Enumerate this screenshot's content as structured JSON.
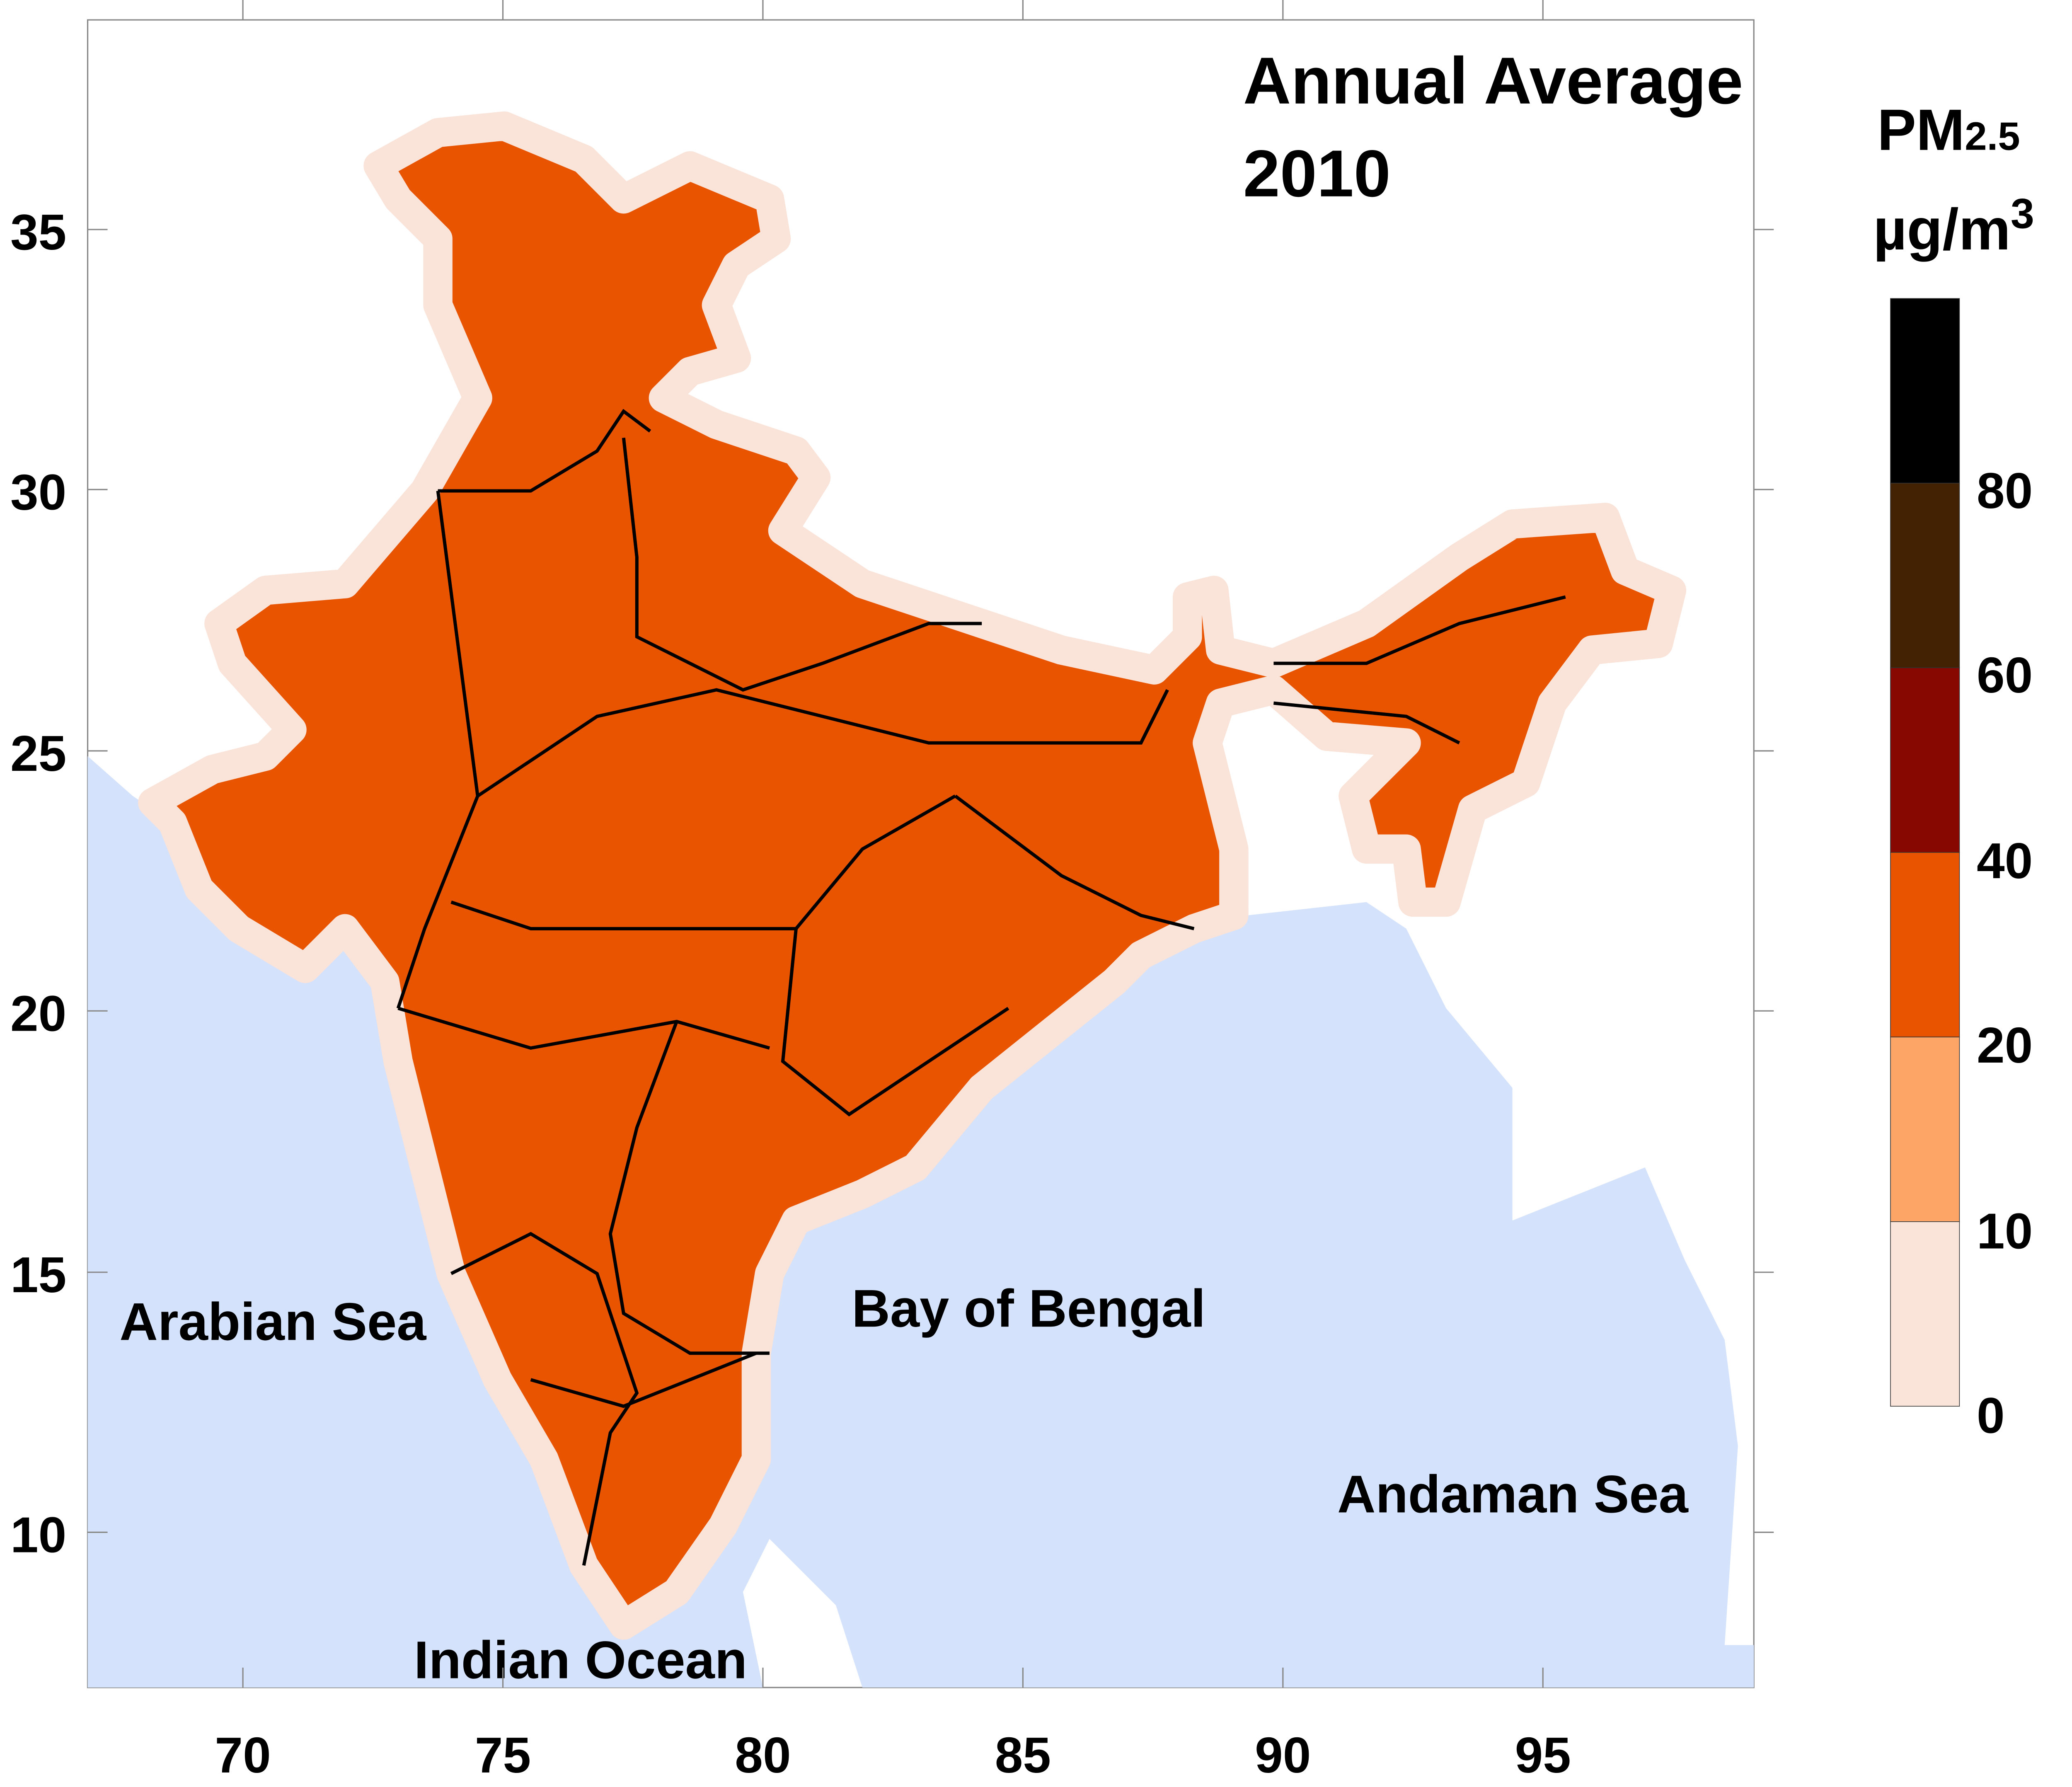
{
  "chart_data": {
    "type": "heatmap",
    "title": "Annual Average",
    "subtitle": "2010",
    "xlabel": "",
    "ylabel": "",
    "xlim": [
      67,
      99
    ],
    "ylim": [
      7,
      39
    ],
    "xticks": [
      "70",
      "75",
      "80",
      "85",
      "90",
      "95"
    ],
    "yticks": [
      "10",
      "15",
      "20",
      "25",
      "30",
      "35"
    ],
    "colorbar": {
      "label_main": "PM",
      "label_sub": "2.5",
      "unit": "µg/m",
      "unit_sup": "3",
      "tick_labels": [
        "0",
        "10",
        "20",
        "40",
        "60",
        "80"
      ],
      "levels": [
        0,
        10,
        20,
        40,
        60,
        80,
        100
      ],
      "colors": [
        "#fae3d8",
        "#fda467",
        "#e85400",
        "#870800",
        "#432204",
        "#000000"
      ]
    },
    "region_labels": [
      "Arabian Sea",
      "Bay of Bengal",
      "Andaman Sea",
      "Indian Ocean"
    ],
    "ocean_color": "#d4e2fb"
  }
}
